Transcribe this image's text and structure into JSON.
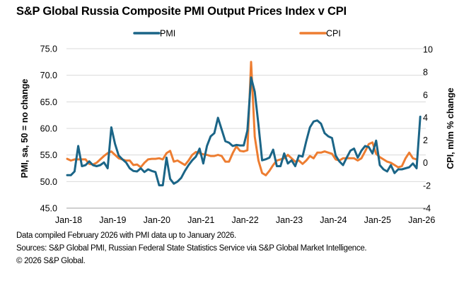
{
  "chart_data": {
    "type": "line",
    "title": "S&P Global Russia Composite PMI Output Prices Index v CPI",
    "ylabel_left": "PMI, sa, 50 = no change",
    "ylabel_right": "CPI, m/m % change",
    "x_start": "2018-01",
    "x_end": "2026-01",
    "x_frequency": "monthly",
    "x_tick_labels": [
      "Jan-18",
      "Jan-19",
      "Jan-20",
      "Jan-21",
      "Jan-22",
      "Jan-23",
      "Jan-24",
      "Jan-25",
      "Jan-26"
    ],
    "ylim_left": [
      45,
      75
    ],
    "yticks_left": [
      "45.0",
      "50.0",
      "55.0",
      "60.0",
      "65.0",
      "70.0",
      "75.0"
    ],
    "ylim_right": [
      -4,
      10
    ],
    "yticks_right": [
      "-4",
      "-2",
      "0",
      "2",
      "4",
      "6",
      "8",
      "10"
    ],
    "grid": true,
    "legend_placement": "top",
    "colors": {
      "PMI": "#1b6587",
      "CPI": "#ed7d31"
    },
    "series": [
      {
        "name": "PMI",
        "axis": "left",
        "values": [
          51.2,
          51.2,
          51.9,
          56.7,
          52.9,
          53.1,
          53.8,
          53.1,
          52.9,
          53.1,
          53.6,
          52.5,
          60.2,
          57.1,
          54.9,
          54.2,
          53.6,
          52.5,
          52.0,
          51.9,
          52.5,
          51.8,
          52.3,
          52.0,
          51.8,
          49.3,
          49.3,
          54.5,
          50.5,
          49.6,
          50.0,
          50.7,
          52.0,
          53.1,
          54.0,
          54.7,
          56.2,
          53.4,
          56.7,
          58.5,
          59.1,
          62.0,
          59.8,
          57.6,
          57.3,
          56.7,
          56.9,
          56.8,
          56.8,
          59.6,
          69.6,
          66.9,
          60.7,
          54.0,
          54.2,
          54.5,
          56.0,
          52.9,
          52.9,
          55.3,
          53.4,
          54.0,
          52.9,
          54.9,
          54.7,
          57.6,
          60.2,
          61.3,
          61.5,
          60.9,
          59.1,
          58.5,
          58.2,
          54.9,
          53.8,
          53.1,
          54.5,
          55.8,
          56.2,
          54.5,
          55.8,
          56.7,
          56.5,
          55.3,
          57.7,
          53.1,
          52.3,
          51.9,
          53.1,
          51.6,
          52.3,
          52.3,
          52.5,
          52.7,
          53.4,
          52.5,
          62.2
        ]
      },
      {
        "name": "CPI",
        "axis": "right",
        "values": [
          0.35,
          0.2,
          0.3,
          0.3,
          0.3,
          0.3,
          -0.1,
          -0.15,
          0.0,
          0.3,
          0.6,
          0.85,
          1.0,
          0.7,
          0.4,
          0.3,
          0.2,
          0.2,
          -0.2,
          -0.15,
          -0.4,
          0.0,
          0.3,
          0.35,
          0.35,
          0.4,
          0.3,
          0.85,
          1.05,
          0.1,
          0.2,
          0.0,
          -0.2,
          0.2,
          0.7,
          0.95,
          0.85,
          0.75,
          0.7,
          0.6,
          0.6,
          0.7,
          0.6,
          0.1,
          0.1,
          0.85,
          1.45,
          1.05,
          1.0,
          1.1,
          8.9,
          2.3,
          0.2,
          -0.9,
          -1.1,
          -0.7,
          -0.2,
          0.2,
          0.3,
          0.4,
          0.7,
          0.4,
          0.1,
          0.2,
          -0.1,
          0.2,
          0.6,
          0.4,
          0.9,
          0.9,
          1.0,
          0.9,
          0.8,
          0.3,
          0.2,
          0.4,
          0.4,
          0.4,
          0.4,
          0.2,
          0.4,
          1.0,
          1.65,
          1.8,
          0.8,
          0.5,
          0.3,
          0.1,
          0.0,
          -0.2,
          -0.4,
          -0.3,
          0.4,
          0.9,
          0.4,
          0.3,
          null
        ]
      }
    ]
  },
  "footer": {
    "note": "Data compiled February 2026 with PMI data up to January 2026.",
    "sources": "Sources: S&P Global PMI, Russian Federal State Statistics Service via S&P Global Market Intelligence.",
    "copyright": "© 2026 S&P Global."
  }
}
